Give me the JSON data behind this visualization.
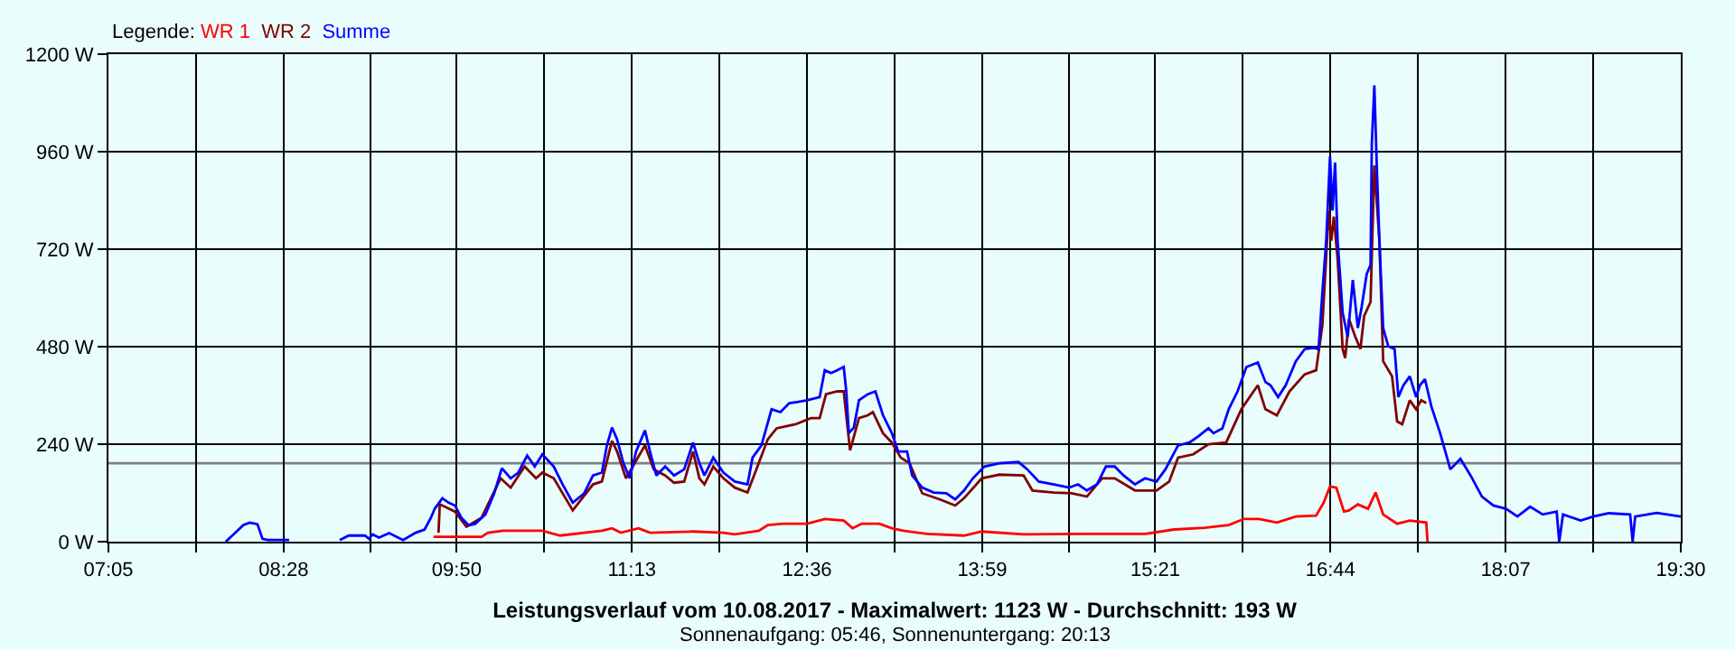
{
  "chart_data": {
    "type": "line",
    "title": "Leistungsverlauf vom 10.08.2017 - Maximalwert: 1123 W - Durchschnitt: 193 W",
    "subtitle": "Sonnenaufgang: 05:46, Sonnenuntergang: 20:13",
    "legend_title": "Legende:",
    "legend": "top left",
    "grid": true,
    "xlim": [
      7.0833,
      19.5
    ],
    "xticks": [
      {
        "value": 7.0833,
        "label": "07:05"
      },
      {
        "value": 7.775,
        "label": null
      },
      {
        "value": 8.4667,
        "label": "08:28"
      },
      {
        "value": 9.15,
        "label": null
      },
      {
        "value": 9.8333,
        "label": "09:50"
      },
      {
        "value": 10.525,
        "label": null
      },
      {
        "value": 11.2167,
        "label": "11:13"
      },
      {
        "value": 11.9083,
        "label": null
      },
      {
        "value": 12.6,
        "label": "12:36"
      },
      {
        "value": 13.2917,
        "label": null
      },
      {
        "value": 13.9833,
        "label": "13:59"
      },
      {
        "value": 14.6667,
        "label": null
      },
      {
        "value": 15.35,
        "label": "15:21"
      },
      {
        "value": 16.0417,
        "label": null
      },
      {
        "value": 16.7333,
        "label": "16:44"
      },
      {
        "value": 17.425,
        "label": null
      },
      {
        "value": 18.1167,
        "label": "18:07"
      },
      {
        "value": 18.8083,
        "label": null
      },
      {
        "value": 19.5,
        "label": "19:30"
      }
    ],
    "ylim": [
      0,
      1200
    ],
    "yticks": [
      {
        "value": 0,
        "label": "0 W"
      },
      {
        "value": 240,
        "label": "240 W"
      },
      {
        "value": 480,
        "label": "480 W"
      },
      {
        "value": 720,
        "label": "720 W"
      },
      {
        "value": 960,
        "label": "960 W"
      },
      {
        "value": 1200,
        "label": "1200 W"
      }
    ],
    "ref_lines": [
      {
        "axis": "y",
        "value": 193,
        "color": "#808080"
      }
    ],
    "series": [
      {
        "name": "WR 1",
        "color": "#ff0000",
        "x": [
          9.65,
          10.03,
          10.08,
          10.2,
          10.37,
          10.51,
          10.65,
          10.98,
          11.06,
          11.13,
          11.27,
          11.36,
          11.7,
          11.94,
          12.03,
          12.22,
          12.29,
          12.41,
          12.6,
          12.74,
          12.89,
          12.96,
          13.03,
          13.17,
          13.27,
          13.36,
          13.55,
          13.84,
          13.98,
          14.31,
          14.79,
          15.27,
          15.5,
          15.74,
          15.93,
          16.05,
          16.17,
          16.31,
          16.46,
          16.62,
          16.68,
          16.73,
          16.78,
          16.84,
          16.88,
          16.95,
          17.03,
          17.09,
          17.15,
          17.26,
          17.36,
          17.49,
          17.5
        ],
        "values": [
          12,
          12,
          22,
          27,
          27,
          27,
          15,
          27,
          33,
          22,
          33,
          22,
          25,
          22,
          18,
          27,
          41,
          44,
          44,
          56,
          52,
          33,
          44,
          44,
          33,
          27,
          19,
          15,
          25,
          18,
          19,
          19,
          30,
          34,
          41,
          56,
          56,
          47,
          62,
          64,
          96,
          136,
          133,
          74,
          77,
          92,
          81,
          121,
          67,
          44,
          52,
          47,
          0
        ]
      },
      {
        "name": "WR 2",
        "color": "#800000",
        "x": [
          9.69,
          9.7,
          9.82,
          9.91,
          10.03,
          10.18,
          10.26,
          10.37,
          10.46,
          10.51,
          10.6,
          10.75,
          10.91,
          10.98,
          11.06,
          11.1,
          11.17,
          11.32,
          11.39,
          11.48,
          11.55,
          11.63,
          11.7,
          11.75,
          11.79,
          11.86,
          11.94,
          12.03,
          12.13,
          12.2,
          12.29,
          12.36,
          12.51,
          12.63,
          12.7,
          12.75,
          12.84,
          12.89,
          12.91,
          12.94,
          13.01,
          13.08,
          13.12,
          13.2,
          13.27,
          13.34,
          13.41,
          13.51,
          13.65,
          13.77,
          13.84,
          13.98,
          14.12,
          14.31,
          14.38,
          14.55,
          14.69,
          14.81,
          14.93,
          15.03,
          15.19,
          15.36,
          15.46,
          15.53,
          15.65,
          15.77,
          15.91,
          16.03,
          16.16,
          16.22,
          16.31,
          16.41,
          16.53,
          16.62,
          16.67,
          16.72,
          16.74,
          16.76,
          16.79,
          16.83,
          16.85,
          16.88,
          16.93,
          16.97,
          17.0,
          17.05,
          17.08,
          17.12,
          17.15,
          17.22,
          17.26,
          17.3,
          17.36,
          17.41,
          17.45,
          17.49
        ],
        "values": [
          22,
          92,
          74,
          37,
          59,
          156,
          133,
          185,
          156,
          170,
          156,
          77,
          141,
          148,
          248,
          222,
          156,
          237,
          178,
          163,
          145,
          148,
          222,
          156,
          141,
          185,
          156,
          133,
          121,
          178,
          252,
          279,
          289,
          304,
          304,
          363,
          370,
          370,
          311,
          225,
          304,
          311,
          319,
          267,
          244,
          207,
          193,
          119,
          104,
          89,
          107,
          156,
          165,
          163,
          126,
          121,
          119,
          111,
          156,
          156,
          126,
          126,
          148,
          207,
          215,
          240,
          244,
          326,
          385,
          326,
          311,
          370,
          412,
          422,
          533,
          815,
          741,
          800,
          696,
          474,
          452,
          548,
          504,
          474,
          556,
          590,
          926,
          741,
          444,
          407,
          296,
          289,
          348,
          326,
          348,
          341
        ]
      },
      {
        "name": "Summe",
        "color": "#0000ff",
        "x": [
          8.01,
          8.15,
          8.2,
          8.26,
          8.3,
          8.34,
          8.51,
          8.7,
          8.91,
          8.98,
          9.11,
          9.14,
          9.17,
          9.22,
          9.3,
          9.41,
          9.51,
          9.58,
          9.63,
          9.66,
          9.72,
          9.77,
          9.82,
          9.87,
          9.93,
          9.98,
          10.06,
          10.13,
          10.19,
          10.26,
          10.32,
          10.39,
          10.45,
          10.51,
          10.6,
          10.67,
          10.75,
          10.84,
          10.91,
          10.98,
          11.02,
          11.06,
          11.1,
          11.15,
          11.2,
          11.25,
          11.32,
          11.36,
          11.41,
          11.48,
          11.55,
          11.63,
          11.7,
          11.75,
          11.79,
          11.86,
          11.94,
          12.03,
          12.13,
          12.17,
          12.24,
          12.32,
          12.39,
          12.46,
          12.53,
          12.6,
          12.7,
          12.74,
          12.79,
          12.84,
          12.89,
          12.91,
          12.93,
          12.97,
          13.01,
          13.08,
          13.14,
          13.2,
          13.27,
          13.32,
          13.39,
          13.43,
          13.51,
          13.6,
          13.7,
          13.77,
          13.84,
          13.91,
          14.0,
          14.12,
          14.27,
          14.34,
          14.43,
          14.55,
          14.67,
          14.74,
          14.81,
          14.89,
          14.96,
          15.03,
          15.1,
          15.19,
          15.27,
          15.36,
          15.43,
          15.53,
          15.62,
          15.69,
          15.77,
          15.81,
          15.88,
          15.93,
          16.0,
          16.07,
          16.16,
          16.22,
          16.26,
          16.32,
          16.38,
          16.46,
          16.53,
          16.6,
          16.64,
          16.67,
          16.7,
          16.73,
          16.75,
          16.77,
          16.79,
          16.83,
          16.87,
          16.91,
          16.95,
          16.98,
          17.02,
          17.05,
          17.06,
          17.08,
          17.1,
          17.12,
          17.15,
          17.19,
          17.24,
          17.27,
          17.31,
          17.36,
          17.41,
          17.44,
          17.48,
          17.53,
          17.6,
          17.68,
          17.76,
          17.84,
          17.93,
          18.02,
          18.12,
          18.21,
          18.31,
          18.41,
          18.52,
          18.54,
          18.57,
          18.71,
          18.81,
          18.93,
          19.1,
          19.12,
          19.14,
          19.31,
          19.5
        ],
        "values": [
          0,
          41,
          47,
          43,
          7,
          4,
          4,
          null,
          4,
          15,
          15,
          7,
          18,
          10,
          21,
          4,
          22,
          30,
          59,
          81,
          107,
          96,
          89,
          59,
          40,
          44,
          67,
          119,
          181,
          156,
          170,
          212,
          185,
          215,
          185,
          141,
          96,
          119,
          163,
          170,
          237,
          281,
          252,
          193,
          156,
          222,
          274,
          222,
          163,
          185,
          163,
          178,
          244,
          193,
          163,
          207,
          170,
          148,
          141,
          207,
          237,
          326,
          319,
          341,
          344,
          348,
          356,
          422,
          415,
          422,
          430,
          370,
          267,
          281,
          348,
          363,
          370,
          311,
          267,
          222,
          222,
          163,
          133,
          121,
          119,
          104,
          126,
          156,
          185,
          193,
          196,
          178,
          148,
          141,
          133,
          141,
          126,
          141,
          185,
          185,
          163,
          141,
          156,
          148,
          178,
          237,
          244,
          259,
          279,
          267,
          279,
          326,
          370,
          430,
          441,
          393,
          385,
          356,
          385,
          444,
          474,
          477,
          474,
          615,
          741,
          948,
          815,
          933,
          741,
          563,
          504,
          644,
          526,
          578,
          659,
          681,
          978,
          1123,
          919,
          741,
          526,
          481,
          474,
          356,
          385,
          407,
          356,
          385,
          400,
          333,
          267,
          178,
          204,
          163,
          111,
          89,
          81,
          62,
          86,
          67,
          74,
          0,
          67,
          52,
          62,
          70,
          67,
          0,
          62,
          71,
          62
        ]
      }
    ]
  }
}
